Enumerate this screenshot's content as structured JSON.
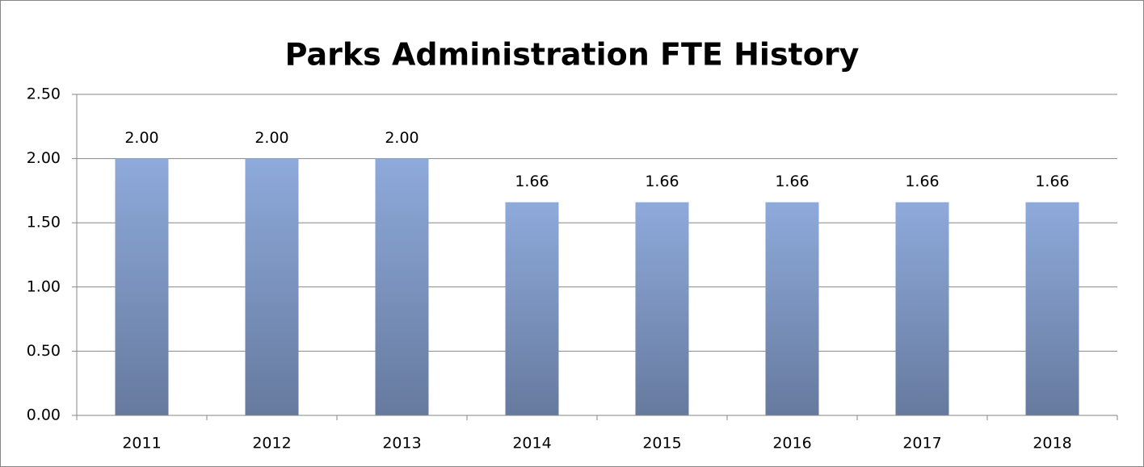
{
  "chart_data": {
    "type": "bar",
    "title": "Parks Administration FTE History",
    "categories": [
      "2011",
      "2012",
      "2013",
      "2014",
      "2015",
      "2016",
      "2017",
      "2018"
    ],
    "values": [
      2,
      2,
      2,
      1.66,
      1.66,
      1.66,
      1.66,
      1.66
    ],
    "value_labels": [
      "2.00",
      "2.00",
      "2.00",
      "1.66",
      "1.66",
      "1.66",
      "1.66",
      "1.66"
    ],
    "color": "#8eaadb",
    "ylim": [
      0,
      2.5
    ],
    "yticks": [
      {
        "value": 0,
        "label": "0.00"
      },
      {
        "value": 0.5,
        "label": "0.50"
      },
      {
        "value": 1,
        "label": "1.00"
      },
      {
        "value": 1.5,
        "label": "1.50"
      },
      {
        "value": 2,
        "label": "2.00"
      },
      {
        "value": 2.5,
        "label": "2.50"
      }
    ],
    "grid": true
  }
}
